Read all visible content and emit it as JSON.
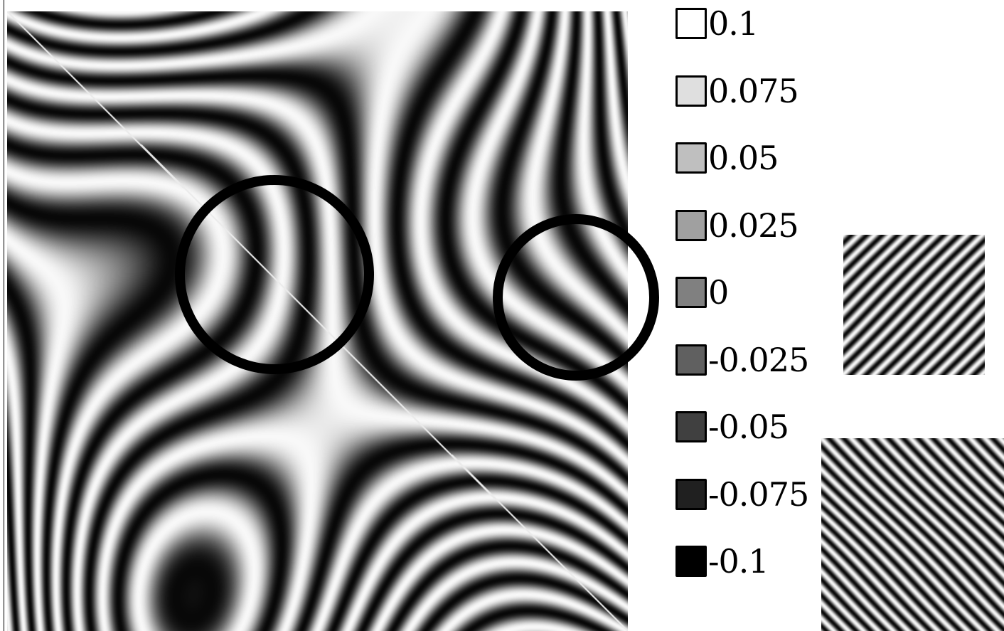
{
  "legend": {
    "items": [
      {
        "label": "0.1",
        "color": "#ffffff"
      },
      {
        "label": "0.075",
        "color": "#dfdfdf"
      },
      {
        "label": "0.05",
        "color": "#bfbfbf"
      },
      {
        "label": "0.025",
        "color": "#a0a0a0"
      },
      {
        "label": "0",
        "color": "#808080"
      },
      {
        "label": "-0.025",
        "color": "#606060"
      },
      {
        "label": "-0.05",
        "color": "#404040"
      },
      {
        "label": "-0.075",
        "color": "#202020"
      },
      {
        "label": "-0.1",
        "color": "#000000"
      }
    ]
  },
  "colors": {
    "background": "#ffffff",
    "circle_stroke": "#000000"
  }
}
